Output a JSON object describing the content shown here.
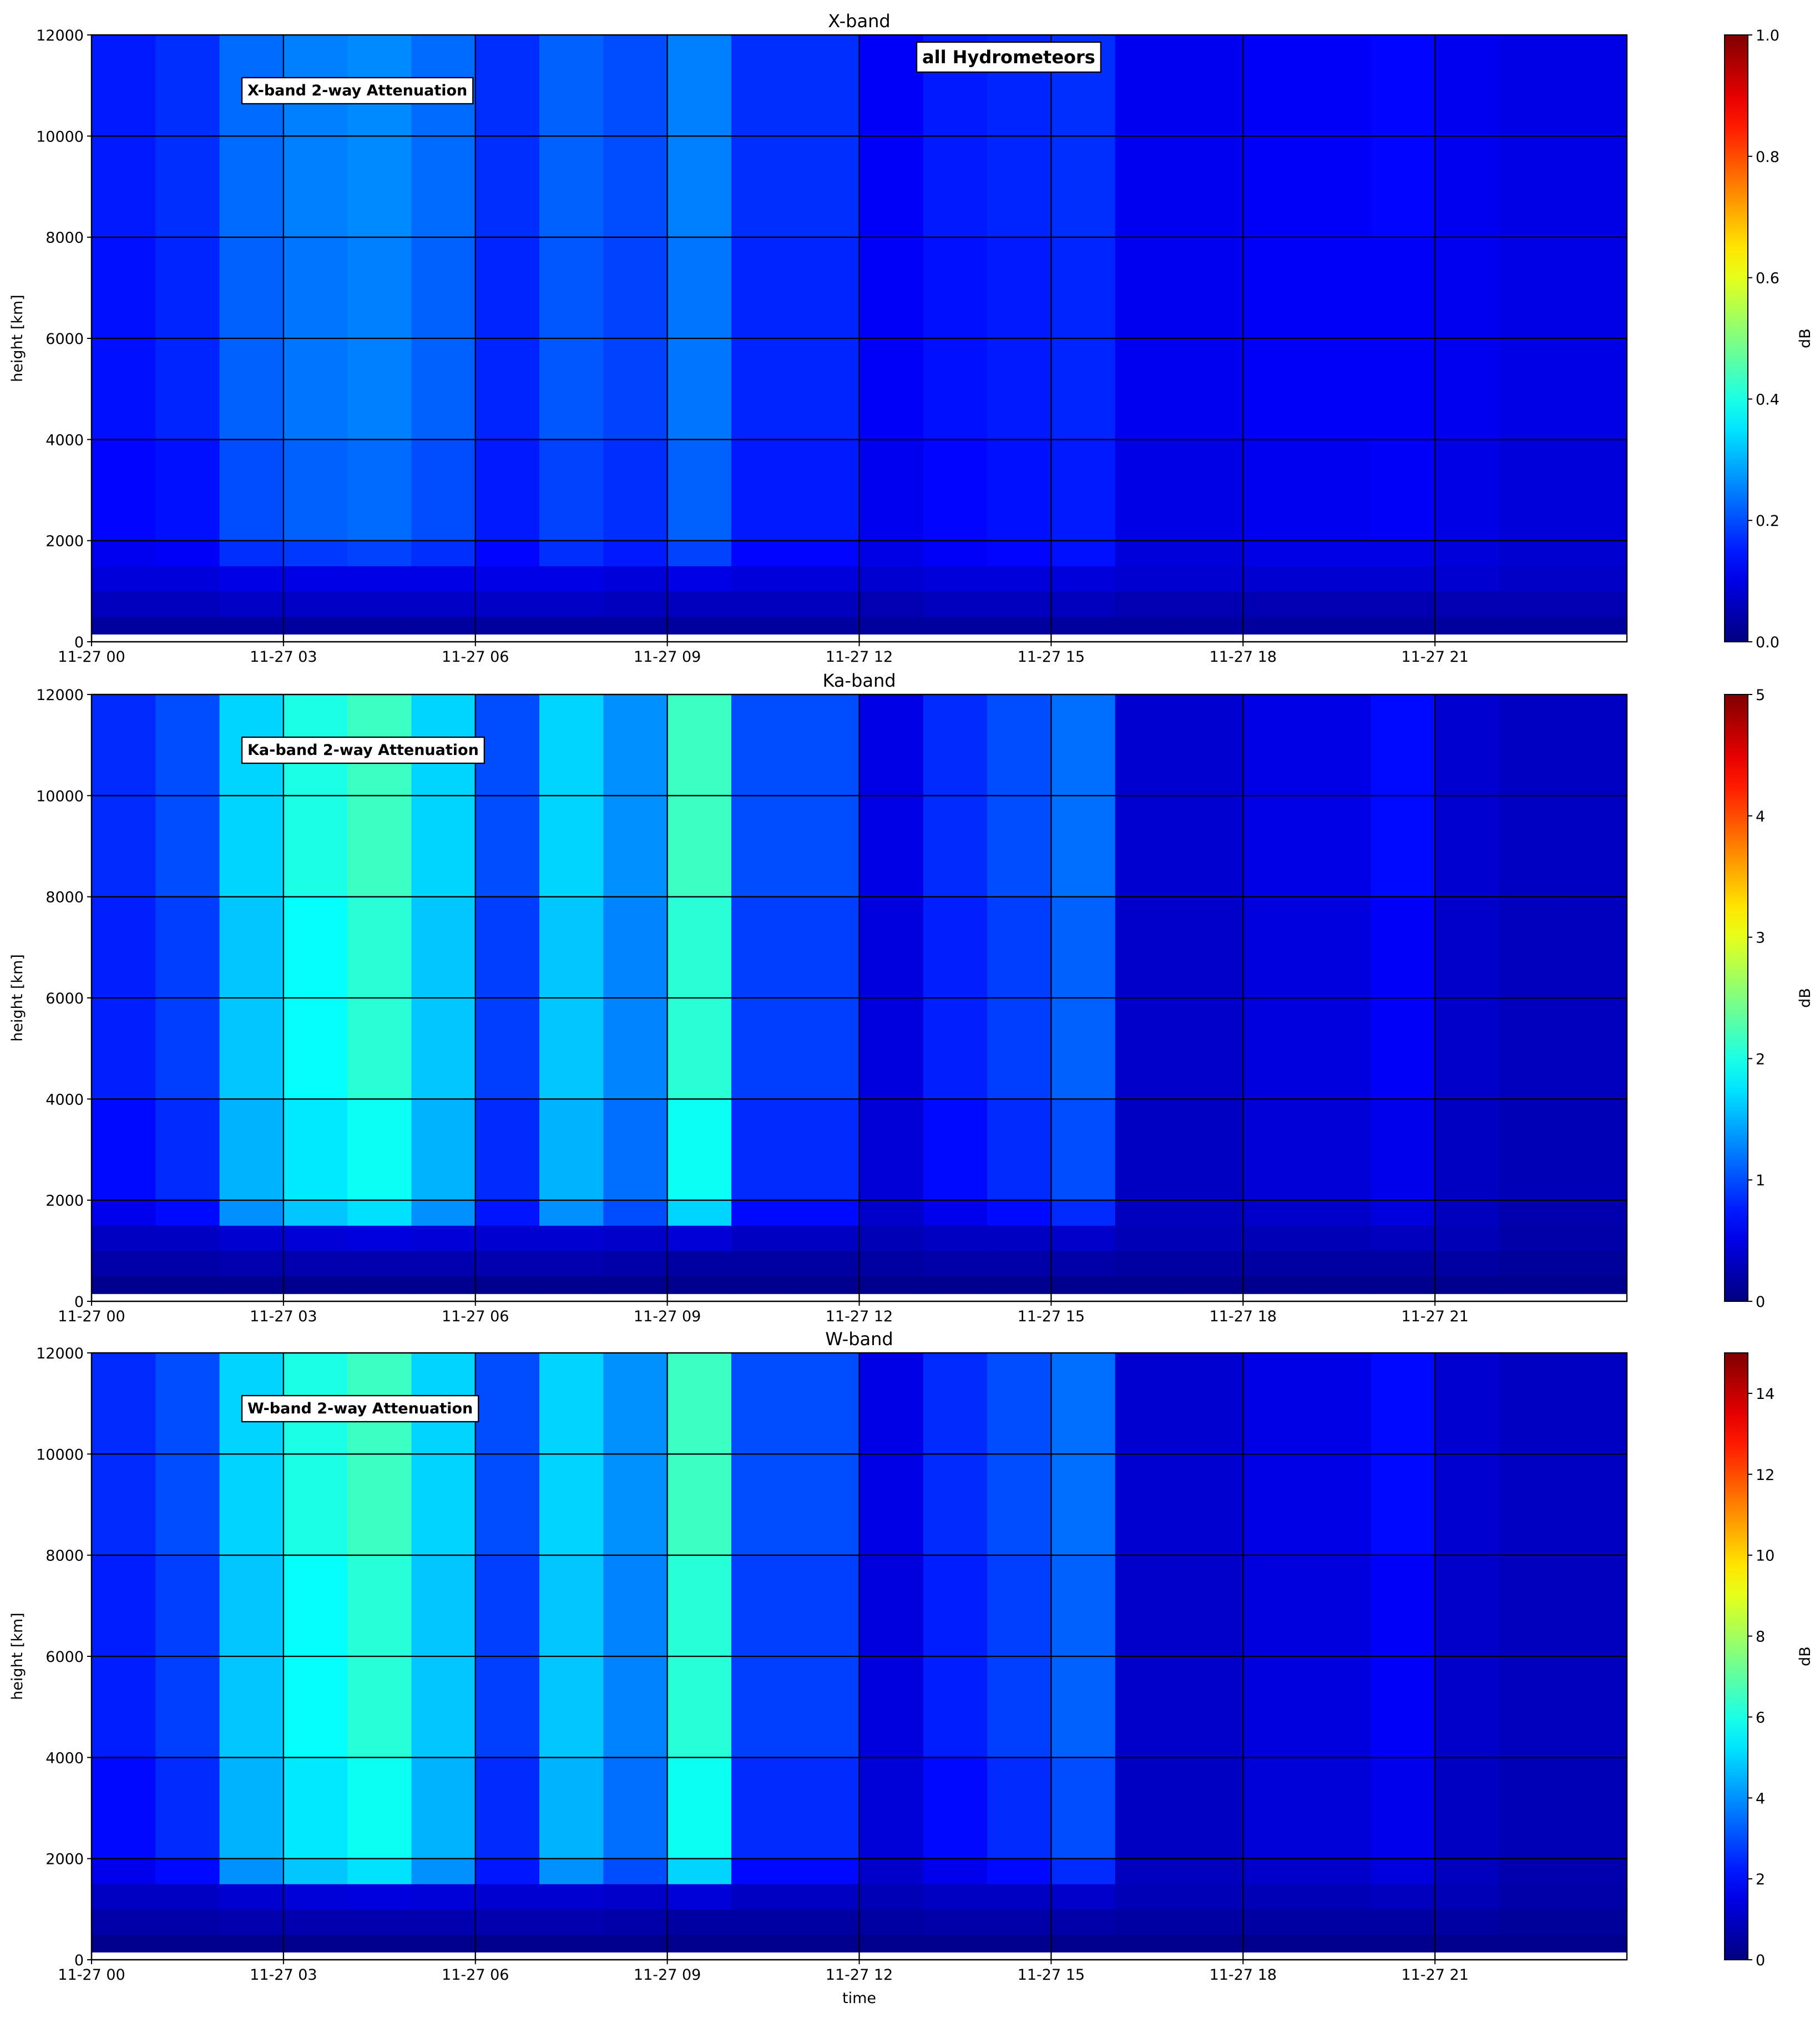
{
  "chart_data": [
    {
      "type": "heatmap",
      "title": "X-band",
      "annotations": [
        "X-band 2-way Attenuation",
        "all Hydrometeors"
      ],
      "ylabel": "height [km]",
      "colormap": "jet",
      "grid": true,
      "x": [
        0,
        1,
        2,
        3,
        4,
        5,
        6,
        7,
        8,
        9,
        10,
        11,
        12,
        13,
        14,
        15,
        16,
        17,
        18,
        19,
        20,
        21,
        22,
        23,
        24
      ],
      "y": [
        150,
        500,
        1000,
        1500,
        2000,
        4000,
        8000,
        12000
      ],
      "z": [
        [
          0.03,
          0.03,
          0.03,
          0.03,
          0.03,
          0.03,
          0.03,
          0.03,
          0.03,
          0.03,
          0.03,
          0.03,
          0.03,
          0.03,
          0.03,
          0.03,
          0.03,
          0.03,
          0.03,
          0.03,
          0.03,
          0.03,
          0.03,
          0.03
        ],
        [
          0.06,
          0.06,
          0.07,
          0.07,
          0.07,
          0.07,
          0.07,
          0.07,
          0.06,
          0.06,
          0.06,
          0.06,
          0.05,
          0.06,
          0.06,
          0.06,
          0.05,
          0.05,
          0.05,
          0.05,
          0.05,
          0.05,
          0.05,
          0.05
        ],
        [
          0.09,
          0.09,
          0.1,
          0.1,
          0.1,
          0.1,
          0.1,
          0.1,
          0.09,
          0.1,
          0.09,
          0.09,
          0.08,
          0.09,
          0.09,
          0.09,
          0.08,
          0.08,
          0.08,
          0.08,
          0.08,
          0.08,
          0.07,
          0.07
        ],
        [
          0.11,
          0.12,
          0.17,
          0.18,
          0.19,
          0.17,
          0.13,
          0.17,
          0.15,
          0.19,
          0.13,
          0.13,
          0.1,
          0.12,
          0.13,
          0.14,
          0.09,
          0.09,
          0.1,
          0.1,
          0.1,
          0.09,
          0.08,
          0.08
        ],
        [
          0.13,
          0.14,
          0.2,
          0.22,
          0.23,
          0.2,
          0.15,
          0.19,
          0.17,
          0.22,
          0.15,
          0.15,
          0.11,
          0.13,
          0.14,
          0.15,
          0.1,
          0.1,
          0.11,
          0.11,
          0.12,
          0.1,
          0.09,
          0.09
        ],
        [
          0.14,
          0.16,
          0.22,
          0.24,
          0.25,
          0.22,
          0.16,
          0.21,
          0.19,
          0.24,
          0.16,
          0.16,
          0.12,
          0.14,
          0.15,
          0.16,
          0.11,
          0.11,
          0.12,
          0.12,
          0.12,
          0.11,
          0.1,
          0.1
        ],
        [
          0.15,
          0.17,
          0.23,
          0.25,
          0.26,
          0.23,
          0.17,
          0.22,
          0.2,
          0.25,
          0.17,
          0.17,
          0.12,
          0.15,
          0.16,
          0.17,
          0.11,
          0.11,
          0.12,
          0.12,
          0.13,
          0.11,
          0.1,
          0.1
        ]
      ],
      "xlim": [
        0,
        24
      ],
      "ylim": [
        0,
        12000
      ],
      "xticks": [
        {
          "value": 0,
          "label": "11-27 00"
        },
        {
          "value": 3,
          "label": "11-27 03"
        },
        {
          "value": 6,
          "label": "11-27 06"
        },
        {
          "value": 9,
          "label": "11-27 09"
        },
        {
          "value": 12,
          "label": "11-27 12"
        },
        {
          "value": 15,
          "label": "11-27 15"
        },
        {
          "value": 18,
          "label": "11-27 18"
        },
        {
          "value": 21,
          "label": "11-27 21"
        }
      ],
      "yticks": [
        0,
        2000,
        4000,
        6000,
        8000,
        10000,
        12000
      ],
      "colorbar_label": "dB",
      "clim": [
        0,
        1
      ],
      "cticks": [
        {
          "value": 0,
          "label": "0.0"
        },
        0.2,
        0.4,
        0.6,
        0.8,
        {
          "value": 1,
          "label": "1.0"
        }
      ]
    },
    {
      "type": "heatmap",
      "title": "Ka-band",
      "annotations": [
        "Ka-band 2-way Attenuation"
      ],
      "ylabel": "height [km]",
      "colormap": "jet",
      "grid": true,
      "x": [
        0,
        1,
        2,
        3,
        4,
        5,
        6,
        7,
        8,
        9,
        10,
        11,
        12,
        13,
        14,
        15,
        16,
        17,
        18,
        19,
        20,
        21,
        22,
        23,
        24
      ],
      "y": [
        150,
        500,
        1000,
        1500,
        2000,
        4000,
        8000,
        12000
      ],
      "z": [
        [
          0.07,
          0.07,
          0.07,
          0.07,
          0.07,
          0.07,
          0.07,
          0.07,
          0.07,
          0.07,
          0.07,
          0.07,
          0.07,
          0.07,
          0.07,
          0.07,
          0.07,
          0.07,
          0.07,
          0.07,
          0.07,
          0.07,
          0.07,
          0.07
        ],
        [
          0.2,
          0.2,
          0.23,
          0.23,
          0.23,
          0.23,
          0.23,
          0.23,
          0.2,
          0.17,
          0.17,
          0.17,
          0.17,
          0.2,
          0.2,
          0.2,
          0.17,
          0.17,
          0.17,
          0.17,
          0.17,
          0.17,
          0.13,
          0.13
        ],
        [
          0.33,
          0.33,
          0.4,
          0.43,
          0.47,
          0.43,
          0.4,
          0.4,
          0.37,
          0.43,
          0.33,
          0.33,
          0.27,
          0.33,
          0.33,
          0.37,
          0.27,
          0.27,
          0.27,
          0.27,
          0.3,
          0.27,
          0.2,
          0.2
        ],
        [
          0.53,
          0.67,
          1.33,
          1.6,
          1.73,
          1.33,
          0.73,
          1.33,
          1,
          1.67,
          0.67,
          0.67,
          0.37,
          0.53,
          0.67,
          0.83,
          0.3,
          0.3,
          0.37,
          0.37,
          0.47,
          0.3,
          0.23,
          0.23
        ],
        [
          0.67,
          0.83,
          1.5,
          1.77,
          1.93,
          1.5,
          0.83,
          1.5,
          1.17,
          1.93,
          0.83,
          0.83,
          0.43,
          0.67,
          0.83,
          1,
          0.33,
          0.33,
          0.43,
          0.43,
          0.53,
          0.33,
          0.27,
          0.27
        ],
        [
          0.77,
          0.93,
          1.6,
          1.9,
          2.07,
          1.6,
          0.93,
          1.6,
          1.27,
          2.07,
          0.93,
          0.93,
          0.47,
          0.77,
          0.93,
          1.1,
          0.37,
          0.37,
          0.47,
          0.47,
          0.6,
          0.37,
          0.3,
          0.3
        ],
        [
          0.83,
          1,
          1.67,
          2,
          2.17,
          1.67,
          1,
          1.67,
          1.33,
          2.17,
          1,
          1,
          0.5,
          0.83,
          1,
          1.17,
          0.4,
          0.4,
          0.5,
          0.5,
          0.67,
          0.4,
          0.33,
          0.33
        ]
      ],
      "xlim": [
        0,
        24
      ],
      "ylim": [
        0,
        12000
      ],
      "xticks": [
        {
          "value": 0,
          "label": "11-27 00"
        },
        {
          "value": 3,
          "label": "11-27 03"
        },
        {
          "value": 6,
          "label": "11-27 06"
        },
        {
          "value": 9,
          "label": "11-27 09"
        },
        {
          "value": 12,
          "label": "11-27 12"
        },
        {
          "value": 15,
          "label": "11-27 15"
        },
        {
          "value": 18,
          "label": "11-27 18"
        },
        {
          "value": 21,
          "label": "11-27 21"
        }
      ],
      "yticks": [
        0,
        2000,
        4000,
        6000,
        8000,
        10000,
        12000
      ],
      "colorbar_label": "dB",
      "clim": [
        0,
        5
      ],
      "cticks": [
        0,
        1,
        2,
        3,
        4,
        5
      ]
    },
    {
      "type": "heatmap",
      "title": "W-band",
      "annotations": [
        "W-band 2-way Attenuation"
      ],
      "ylabel": "height [km]",
      "xlabel": "time",
      "colormap": "jet",
      "grid": true,
      "x": [
        0,
        1,
        2,
        3,
        4,
        5,
        6,
        7,
        8,
        9,
        10,
        11,
        12,
        13,
        14,
        15,
        16,
        17,
        18,
        19,
        20,
        21,
        22,
        23,
        24
      ],
      "y": [
        150,
        500,
        1000,
        1500,
        2000,
        4000,
        8000,
        12000
      ],
      "z": [
        [
          0.2,
          0.2,
          0.2,
          0.2,
          0.2,
          0.2,
          0.2,
          0.2,
          0.2,
          0.2,
          0.2,
          0.2,
          0.2,
          0.2,
          0.2,
          0.2,
          0.2,
          0.2,
          0.2,
          0.2,
          0.2,
          0.2,
          0.2,
          0.2
        ],
        [
          0.6,
          0.6,
          0.7,
          0.7,
          0.7,
          0.7,
          0.7,
          0.7,
          0.6,
          0.5,
          0.5,
          0.5,
          0.5,
          0.6,
          0.6,
          0.6,
          0.5,
          0.5,
          0.5,
          0.5,
          0.5,
          0.5,
          0.4,
          0.4
        ],
        [
          1,
          1,
          1.2,
          1.3,
          1.4,
          1.3,
          1.2,
          1.2,
          1.1,
          1.3,
          1,
          1,
          0.8,
          1,
          1,
          1.1,
          0.8,
          0.8,
          0.8,
          0.8,
          0.9,
          0.8,
          0.6,
          0.6
        ],
        [
          1.6,
          2,
          4,
          4.8,
          5.2,
          4,
          2.2,
          4,
          3,
          5,
          2,
          2,
          1.1,
          1.6,
          2,
          2.5,
          0.9,
          0.9,
          1.1,
          1.1,
          1.4,
          0.9,
          0.7,
          0.7
        ],
        [
          2,
          2.5,
          4.5,
          5.3,
          5.8,
          4.5,
          2.5,
          4.5,
          3.5,
          5.8,
          2.5,
          2.5,
          1.3,
          2,
          2.5,
          3,
          1,
          1,
          1.3,
          1.3,
          1.6,
          1,
          0.8,
          0.8
        ],
        [
          2.3,
          2.8,
          4.8,
          5.7,
          6.2,
          4.8,
          2.8,
          4.8,
          3.8,
          6.2,
          2.8,
          2.8,
          1.4,
          2.3,
          2.8,
          3.3,
          1.1,
          1.1,
          1.4,
          1.4,
          1.8,
          1.1,
          0.9,
          0.9
        ],
        [
          2.5,
          3,
          5,
          6,
          6.5,
          5,
          3,
          5,
          4,
          6.5,
          3,
          3,
          1.5,
          2.5,
          3,
          3.5,
          1.2,
          1.2,
          1.5,
          1.5,
          2,
          1.2,
          1,
          1
        ]
      ],
      "xlim": [
        0,
        24
      ],
      "ylim": [
        0,
        12000
      ],
      "xticks": [
        {
          "value": 0,
          "label": "11-27 00"
        },
        {
          "value": 3,
          "label": "11-27 03"
        },
        {
          "value": 6,
          "label": "11-27 06"
        },
        {
          "value": 9,
          "label": "11-27 09"
        },
        {
          "value": 12,
          "label": "11-27 12"
        },
        {
          "value": 15,
          "label": "11-27 15"
        },
        {
          "value": 18,
          "label": "11-27 18"
        },
        {
          "value": 21,
          "label": "11-27 21"
        }
      ],
      "yticks": [
        0,
        2000,
        4000,
        6000,
        8000,
        10000,
        12000
      ],
      "colorbar_label": "dB",
      "clim": [
        0,
        15
      ],
      "cticks": [
        0,
        2,
        4,
        6,
        8,
        10,
        12,
        14
      ]
    }
  ]
}
